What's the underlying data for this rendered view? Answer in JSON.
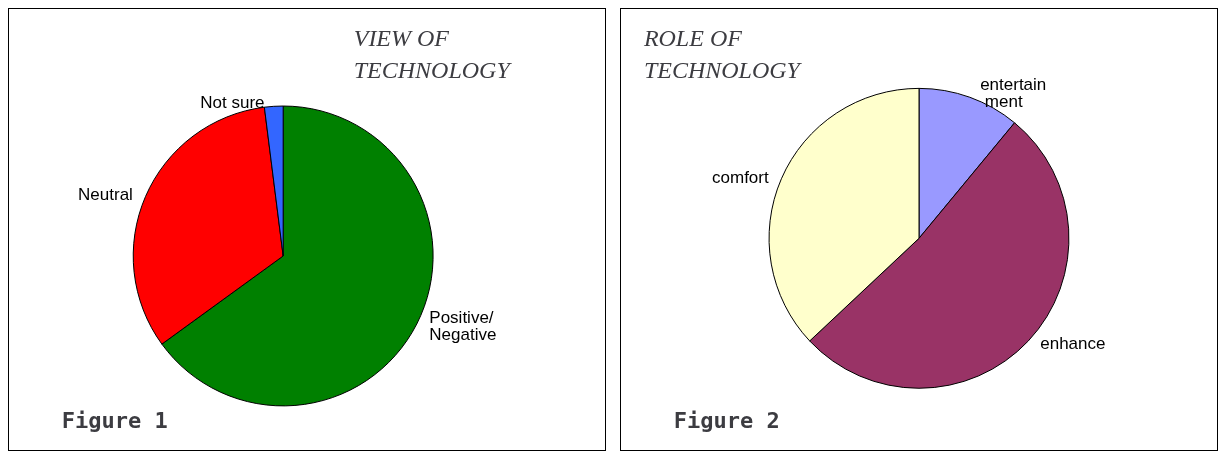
{
  "chart_data": [
    {
      "type": "pie",
      "title": "VIEW OF TECHNOLOGY",
      "categories": [
        "Positive/Negative",
        "Neutral",
        "Not sure"
      ],
      "values": [
        65,
        33,
        2
      ],
      "colors": [
        "#008000",
        "#ff0000",
        "#3366ff"
      ],
      "annotations": [
        "Figure 1"
      ]
    },
    {
      "type": "pie",
      "title": "ROLE OF TECHNOLOGY",
      "categories": [
        "entertain ment",
        "enhance",
        "comfort"
      ],
      "values": [
        11,
        52,
        37
      ],
      "colors": [
        "#9999ff",
        "#993366",
        "#ffffcc"
      ],
      "annotations": [
        "Figure 2"
      ]
    }
  ]
}
